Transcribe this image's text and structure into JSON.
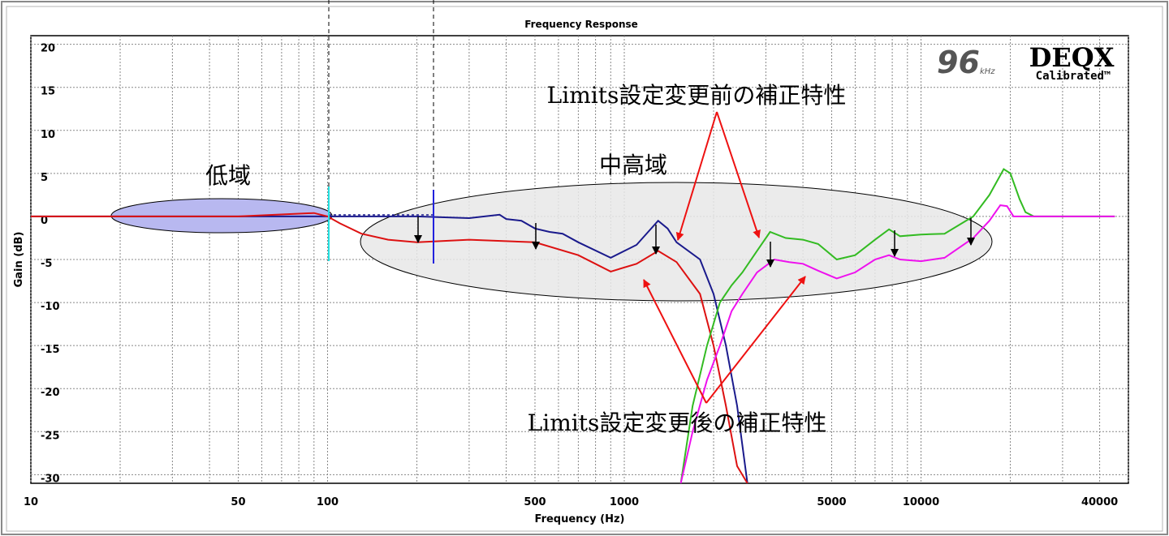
{
  "chart_data": {
    "type": "line",
    "title": "Frequency Response",
    "xlabel": "Frequency (Hz)",
    "ylabel": "Gain (dB)",
    "x_scale": "log",
    "xlim": [
      10,
      50000
    ],
    "ylim": [
      -31,
      21
    ],
    "grid": true,
    "x_ticks": [
      10,
      50,
      100,
      500,
      1000,
      5000,
      10000,
      40000
    ],
    "y_ticks": [
      20,
      15,
      10,
      5,
      0,
      -5,
      -10,
      -15,
      -20,
      -25,
      -30
    ],
    "series": [
      {
        "color": "#1a1a8c",
        "x": [
          10,
          20,
          50,
          100,
          150,
          200,
          300,
          380,
          400,
          450,
          500,
          560,
          620,
          700,
          900,
          1100,
          1300,
          1400,
          1500,
          1800,
          2000,
          2200,
          2400,
          2600
        ],
        "y": [
          0,
          0,
          0,
          0,
          0,
          0,
          -0.2,
          0.2,
          -0.3,
          -0.5,
          -1.4,
          -1.8,
          -2,
          -3,
          -4.8,
          -3.3,
          -0.5,
          -1.4,
          -3,
          -5,
          -9,
          -15,
          -22,
          -31
        ]
      },
      {
        "color": "#dd1111",
        "x": [
          10,
          20,
          50,
          90,
          100,
          110,
          130,
          160,
          200,
          300,
          500,
          700,
          900,
          1100,
          1300,
          1500,
          1800,
          2000,
          2200,
          2400,
          2600
        ],
        "y": [
          0,
          0,
          0,
          0.4,
          0,
          -0.8,
          -2,
          -2.7,
          -3,
          -2.7,
          -3,
          -4.5,
          -6.4,
          -5.5,
          -4,
          -5.3,
          -9,
          -15,
          -22,
          -29,
          -31
        ]
      },
      {
        "color": "#33bb22",
        "x": [
          1550,
          1700,
          1900,
          2100,
          2300,
          2500,
          2800,
          3100,
          3500,
          4000,
          4500,
          5200,
          6000,
          7000,
          7800,
          8500,
          10000,
          12000,
          15000,
          17000,
          19000,
          20000,
          21500,
          22500,
          24000,
          30000,
          45000
        ],
        "y": [
          -31,
          -22,
          -15,
          -10,
          -8,
          -6.5,
          -4,
          -1.8,
          -2.5,
          -2.7,
          -3.2,
          -5,
          -4.5,
          -2.7,
          -1.5,
          -2.3,
          -2.1,
          -2,
          0,
          2.5,
          5.5,
          5,
          2,
          0.5,
          0,
          0,
          0
        ]
      },
      {
        "color": "#ee11ee",
        "x": [
          1550,
          1700,
          1900,
          2100,
          2300,
          2500,
          2800,
          3200,
          3600,
          4000,
          4500,
          5200,
          6000,
          7000,
          7800,
          8500,
          10000,
          12000,
          15000,
          17000,
          18500,
          19500,
          20500,
          22500,
          30000,
          45000
        ],
        "y": [
          -31,
          -25,
          -19,
          -15,
          -11,
          -9,
          -6.5,
          -5,
          -5.3,
          -5.5,
          -6.3,
          -7.2,
          -6.5,
          -5,
          -4.5,
          -5,
          -5.2,
          -4.8,
          -2.5,
          -0.5,
          1.3,
          1.2,
          0,
          0,
          0,
          0
        ]
      }
    ],
    "annotations": {
      "low_band": "低域",
      "mid_high_band": "中高域",
      "before_label": "Limits設定変更前の補正特性",
      "after_label": "Limits設定変更後の補正特性"
    },
    "logo": {
      "rate": "96",
      "rate_unit": "kHz",
      "brand": "DEQX",
      "tag": "Calibrated™"
    }
  }
}
